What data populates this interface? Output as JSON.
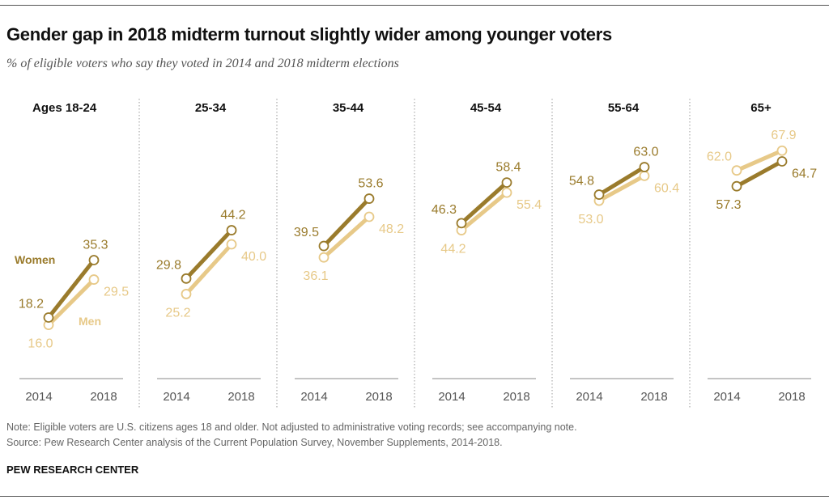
{
  "title": "Gender gap in 2018 midterm turnout slightly wider among younger voters",
  "subtitle": "% of eligible voters who say they voted in 2014 and 2018 midterm elections",
  "note": "Note: Eligible voters are U.S. citizens ages 18 and older. Not adjusted to administrative voting records; see accompanying note.",
  "source": "Source: Pew Research Center analysis of the Current Population Survey, November Supplements, 2014-2018.",
  "brand": "PEW RESEARCH CENTER",
  "colors": {
    "women": "#9a7b2c",
    "men": "#e7c988"
  },
  "chart_data": {
    "type": "line",
    "x": [
      "2014",
      "2018"
    ],
    "panels": [
      {
        "label": "Ages 18-24",
        "women": [
          18.2,
          35.3
        ],
        "men": [
          16.0,
          29.5
        ]
      },
      {
        "label": "25-34",
        "women": [
          29.8,
          44.2
        ],
        "men": [
          25.2,
          40.0
        ]
      },
      {
        "label": "35-44",
        "women": [
          39.5,
          53.6
        ],
        "men": [
          36.1,
          48.2
        ]
      },
      {
        "label": "45-54",
        "women": [
          46.3,
          58.4
        ],
        "men": [
          44.2,
          55.4
        ]
      },
      {
        "label": "55-64",
        "women": [
          54.8,
          63.0
        ],
        "men": [
          53.0,
          60.4
        ]
      },
      {
        "label": "65+",
        "women": [
          57.3,
          64.7
        ],
        "men": [
          62.0,
          67.9
        ]
      }
    ],
    "series_labels": {
      "women": "Women",
      "men": "Men"
    }
  }
}
